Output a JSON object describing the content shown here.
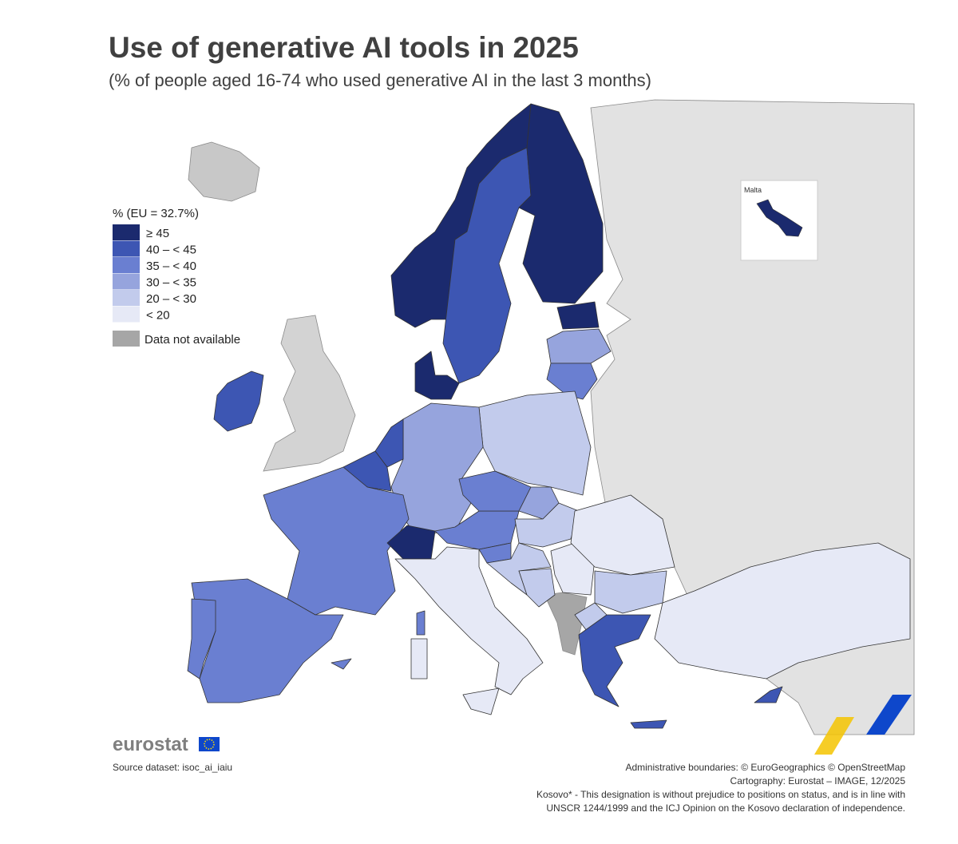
{
  "title": "Use of generative AI tools in 2025",
  "subtitle": "(% of people aged 16-74 who used generative AI in the last 3 months)",
  "legend": {
    "title": "% (EU = 32.7%)",
    "items": [
      {
        "label": "≥ 45",
        "color": "#1b2a6e"
      },
      {
        "label": "40 – < 45",
        "color": "#3d56b3"
      },
      {
        "label": "35 – < 40",
        "color": "#6a7fd1"
      },
      {
        "label": "30 – < 35",
        "color": "#96a4dd"
      },
      {
        "label": "20 – < 30",
        "color": "#c2cbec"
      },
      {
        "label": "< 20",
        "color": "#e6e9f6"
      }
    ],
    "na": {
      "label": "Data not available",
      "color": "#a6a6a6"
    }
  },
  "inset": {
    "label": "Malta"
  },
  "logo": "eurostat",
  "source": "Source dataset: isoc_ai_iaiu",
  "credits": [
    "Administrative boundaries: © EuroGeographics © OpenStreetMap",
    "Cartography: Eurostat – IMAGE, 12/2025",
    "Kosovo* - This designation is without prejudice to positions on status, and is in line with",
    "UNSCR 1244/1999 and the ICJ Opinion on the Kosovo declaration of independence."
  ]
}
